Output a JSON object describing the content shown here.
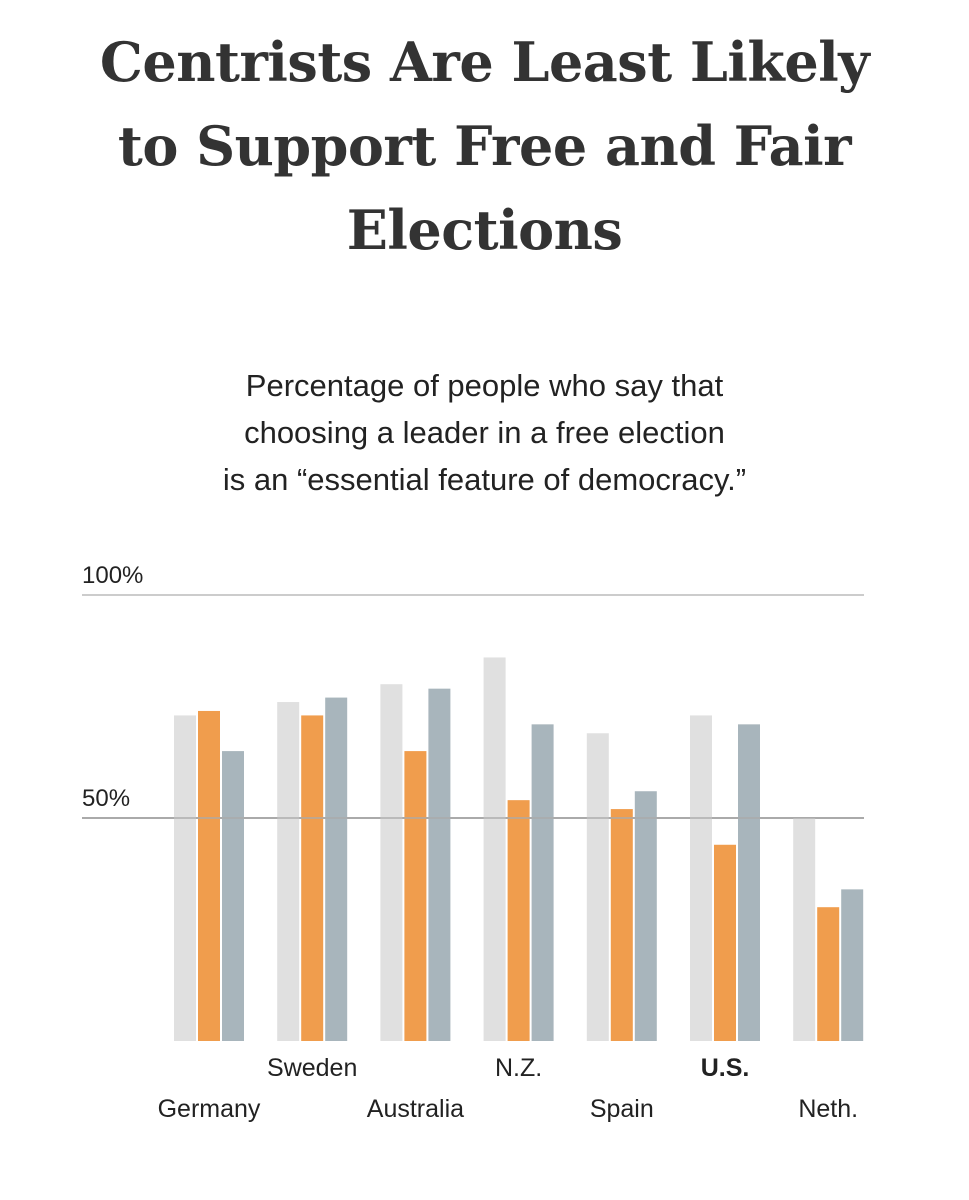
{
  "title_lines": [
    "Centrists Are Least Likely",
    "to Support Free and Fair",
    "Elections"
  ],
  "subtitle_lines": [
    "Percentage of people who say that",
    "choosing a leader in a free election",
    "is an “essential feature of democracy.”"
  ],
  "colors": {
    "light_gray": "#e0e0e0",
    "orange": "#f09d4d",
    "blue_gray": "#a8b5bc",
    "gridline": "#cccccc",
    "gridline_50": "#aaaaaa",
    "text": "#222222"
  },
  "chart_data": {
    "type": "bar",
    "categories": [
      "Germany",
      "Sweden",
      "Australia",
      "N.Z.",
      "Spain",
      "U.S.",
      "Neth."
    ],
    "highlight_category": "U.S.",
    "series": [
      {
        "values": [
          73,
          76,
          80,
          86,
          69,
          73,
          50
        ],
        "color": "#e0e0e0"
      },
      {
        "values": [
          74,
          73,
          65,
          54,
          52,
          44,
          30
        ],
        "color": "#f09d4d"
      },
      {
        "values": [
          65,
          77,
          79,
          71,
          56,
          71,
          34
        ],
        "color": "#a8b5bc"
      }
    ],
    "ylim": [
      0,
      100
    ],
    "yticks": [
      {
        "value": 100,
        "label": "100%"
      },
      {
        "value": 50,
        "label": "50%"
      }
    ],
    "legend": "none",
    "grid": true
  }
}
